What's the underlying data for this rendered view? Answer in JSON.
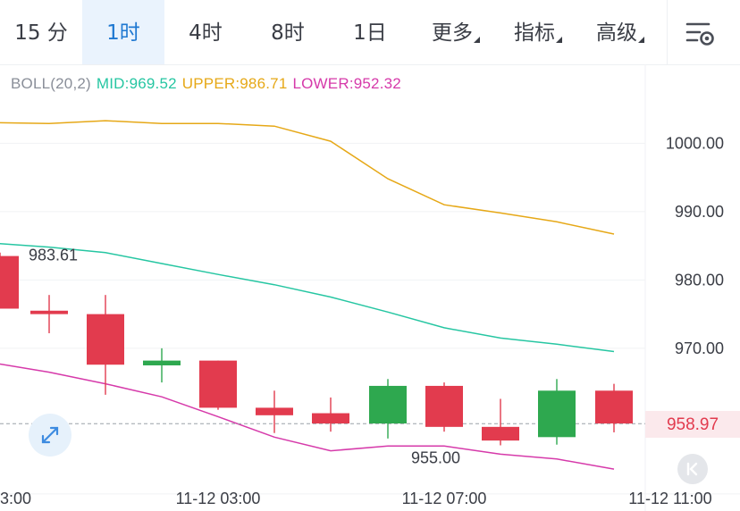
{
  "tabs": [
    {
      "label": "15 分",
      "active": false
    },
    {
      "label": "1时",
      "active": true
    },
    {
      "label": "4时",
      "active": false
    },
    {
      "label": "8时",
      "active": false
    },
    {
      "label": "1日",
      "active": false
    },
    {
      "label": "更多",
      "active": false,
      "dropdown": true
    },
    {
      "label": "指标",
      "active": false,
      "dropdown": true
    },
    {
      "label": "高级",
      "active": false,
      "dropdown": true
    }
  ],
  "settings_icon": "chart-settings-icon",
  "indicator": {
    "name": "BOLL(20,2)",
    "mid": "MID:969.52",
    "upper": "UPPER:986.71",
    "lower": "LOWER:952.32"
  },
  "colors": {
    "up": "#2ea84f",
    "down": "#e23b4e",
    "mid": "#26c6a2",
    "upper": "#e6a817",
    "lower": "#d63aaa",
    "accent": "#1f78d1"
  },
  "last_price": "958.97",
  "controls": {
    "fullscreen_icon": "expand-arrows-icon",
    "reset_icon": "skip-to-start-icon"
  },
  "chart_data": {
    "type": "candlestick",
    "ylim": [
      950,
      1010
    ],
    "y_ticks": [
      "1000.00",
      "990.00",
      "980.00",
      "970.00"
    ],
    "x_ticks": [
      "3:00",
      "11-12 03:00",
      "11-12 07:00",
      "11-12 11:00"
    ],
    "max_label": "983.61",
    "min_label": "955.00",
    "candles": [
      {
        "open": 983.5,
        "close": 975.8,
        "high": 984.0,
        "low": 975.8
      },
      {
        "open": 975.5,
        "close": 975.0,
        "high": 977.8,
        "low": 972.2
      },
      {
        "open": 975.0,
        "close": 967.6,
        "high": 977.8,
        "low": 963.2
      },
      {
        "open": 967.5,
        "close": 968.2,
        "high": 970.0,
        "low": 965.0
      },
      {
        "open": 968.2,
        "close": 961.3,
        "high": 968.2,
        "low": 961.0
      },
      {
        "open": 961.3,
        "close": 960.2,
        "high": 963.8,
        "low": 957.6
      },
      {
        "open": 960.5,
        "close": 959.0,
        "high": 962.8,
        "low": 957.8
      },
      {
        "open": 959.0,
        "close": 964.5,
        "high": 965.5,
        "low": 956.8
      },
      {
        "open": 964.5,
        "close": 958.5,
        "high": 965.0,
        "low": 957.8
      },
      {
        "open": 958.5,
        "close": 956.5,
        "high": 962.6,
        "low": 955.8
      },
      {
        "open": 957.0,
        "close": 963.8,
        "high": 965.5,
        "low": 955.9
      },
      {
        "open": 963.8,
        "close": 959.0,
        "high": 964.8,
        "low": 957.7
      }
    ],
    "upper": [
      1003.0,
      1002.9,
      1003.3,
      1002.9,
      1002.9,
      1002.5,
      1000.3,
      994.8,
      991.0,
      989.8,
      988.5,
      986.71
    ],
    "mid": [
      985.3,
      984.8,
      984.0,
      982.4,
      980.8,
      979.3,
      977.5,
      975.3,
      973.0,
      971.5,
      970.6,
      969.52
    ],
    "lower": [
      967.7,
      966.5,
      964.8,
      962.9,
      960.0,
      957.0,
      955.0,
      955.7,
      955.7,
      954.5,
      953.8,
      952.32
    ]
  }
}
